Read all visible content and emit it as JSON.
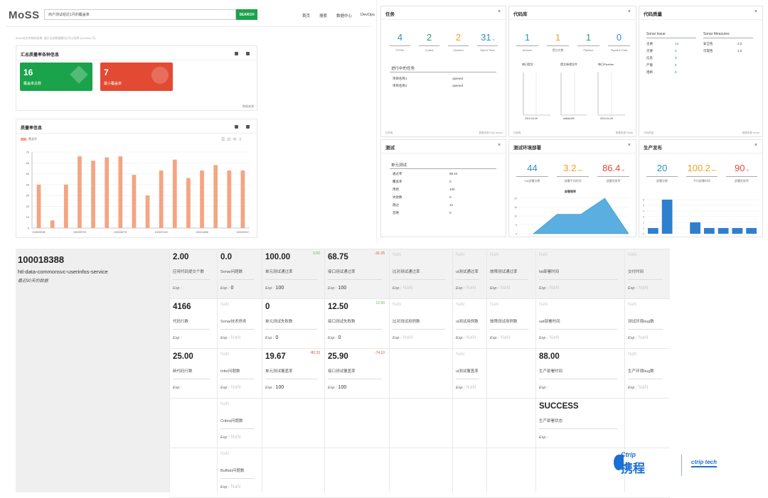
{
  "moss": {
    "logo": "MoSS",
    "search_value": "商户测试组近1月的覆盖率",
    "search_button": "SEARCH",
    "nav": [
      "首页",
      "搜索",
      "数据中心",
      "DevOps"
    ],
    "hint": "Moss对应系统的结果, 展示全部数据概况(可以选择 Question 行)",
    "summary_title": "汇总质量率各种信息",
    "tile1_value": "16",
    "tile1_label": "覆盖率总数",
    "tile2_value": "7",
    "tile2_label": "最小覆盖率",
    "summary_footer": "数据来源",
    "coverage_title": "质量率信息",
    "legend": "覆盖率"
  },
  "chart_data": {
    "type": "bar",
    "title": "质量率信息",
    "legend": [
      "覆盖率"
    ],
    "color": "#f4a582",
    "ylim": [
      0,
      70
    ],
    "yticks": [
      0,
      10,
      20,
      30,
      40,
      50,
      60,
      70
    ],
    "categories": [
      "100009098",
      "",
      "",
      "100009700",
      "",
      "",
      "100008075",
      "",
      "",
      "100007425",
      "",
      "",
      "100014856",
      "",
      "",
      "100020047"
    ],
    "x_tick_labels": [
      "100009098",
      "100009700",
      "100008075",
      "100007425",
      "100014856",
      "100020047"
    ],
    "values": [
      40,
      7,
      40,
      66,
      62,
      65,
      66,
      49,
      30,
      53,
      63,
      46,
      53,
      58,
      53,
      53
    ]
  },
  "tasks": {
    "title": "任务",
    "close": "×",
    "stats": [
      {
        "value": "4",
        "label": "TOTAL",
        "color": "#2b8fd1"
      },
      {
        "value": "2",
        "label": "Coded",
        "color": "#1aa36b"
      },
      {
        "value": "2",
        "label": "Opened",
        "color": "#f0a020"
      },
      {
        "value": "31",
        "unit": "h",
        "label": "Spent Time",
        "color": "#2b8fd1"
      }
    ],
    "in_progress": "进行中的任务",
    "rows": [
      [
        "项目名称1",
        "opened"
      ],
      [
        "项目名称2",
        "opened"
      ]
    ],
    "footer_left": "任务数",
    "footer_right": "数据来源 Ctrip Issues"
  },
  "codebase": {
    "title": "代码库",
    "close": "×",
    "stats": [
      {
        "value": "1",
        "label": "Authors",
        "color": "#2b8fd1"
      },
      {
        "value": "1",
        "label": "提交次数",
        "color": "#f0a020"
      },
      {
        "value": "1",
        "label": "Pipeline",
        "color": "#1aa36b"
      },
      {
        "value": "0",
        "label": "Pipeline Fails",
        "color": "#2b8fd1"
      }
    ],
    "mini_titles": [
      "每日提交",
      "提交新增文件",
      "每日Pipeline"
    ],
    "mini_dates": [
      "2019-04-26",
      "ad8ab499",
      "2019-04-26"
    ],
    "footer_left": "代码库",
    "footer_right": "数据来源 Gitlab"
  },
  "quality": {
    "title": "代码质量",
    "close": "×",
    "col1": "Sonar Issue",
    "col2": "Sonar Measures",
    "issues": [
      [
        "主要",
        "14"
      ],
      [
        "次要",
        "3"
      ],
      [
        "信息",
        "0"
      ],
      [
        "严重",
        "0"
      ],
      [
        "阻断",
        "0"
      ]
    ],
    "measures": [
      [
        "安全性",
        "2.0"
      ],
      [
        "可靠性",
        "1.0"
      ]
    ],
    "footer_left": "代码质量",
    "footer_right": "数据来源 Sonar"
  },
  "testing": {
    "title": "测试",
    "close": "×",
    "section": "单元测试",
    "rows": [
      [
        "通过率",
        "98.42"
      ],
      [
        "覆盖率",
        "0"
      ],
      [
        "用例",
        "100"
      ],
      [
        "失败数",
        "0"
      ],
      [
        "跳过",
        "12"
      ],
      [
        "忽略",
        "0"
      ]
    ]
  },
  "deploy_test": {
    "title": "测试环境部署",
    "close": "×",
    "stats": [
      {
        "value": "44",
        "unit": "",
        "label": "Fat部署次数",
        "color": "#2b8fd1"
      },
      {
        "value": "3.2",
        "unit": "min",
        "label": "部署平均时间",
        "color": "#f0a020"
      },
      {
        "value": "86.4",
        "unit": "%",
        "label": "部署失败率",
        "color": "#e24a33"
      }
    ],
    "chart_title": "部署频率",
    "area_values": [
      0,
      11,
      11,
      20,
      0
    ]
  },
  "deploy_prod": {
    "title": "生产发布",
    "close": "×",
    "stats": [
      {
        "value": "20",
        "unit": "",
        "label": "部署次数",
        "color": "#2b8fd1"
      },
      {
        "value": "100.2",
        "unit": "min",
        "label": "平均部署时间",
        "color": "#f0a020"
      },
      {
        "value": "90",
        "unit": "%",
        "label": "部署失败率",
        "color": "#e24a33"
      }
    ],
    "bar_values": [
      1,
      6,
      0,
      2,
      1,
      1,
      1,
      1
    ]
  },
  "app": {
    "id": "100018388",
    "name": "htl-data-commonsvc-userinfos-service",
    "period": "最近90天的数据"
  },
  "grid": {
    "exp_prefix": "Exp :",
    "cells": [
      {
        "col": 0,
        "row": 0,
        "v": "2.00",
        "l": "应用代码提交个数",
        "e": ""
      },
      {
        "col": 1,
        "row": 0,
        "v": "0.0",
        "l": "Sonar问题数",
        "e": "0"
      },
      {
        "col": 2,
        "row": 0,
        "v": "100.00",
        "l": "单元测试通过率",
        "e": "100",
        "d": "0.00",
        "dc": "#5cb85c"
      },
      {
        "col": 3,
        "row": 0,
        "v": "68.75",
        "l": "接口测试通过率",
        "e": "100",
        "d": "-31.25",
        "dc": "#e24a33"
      },
      {
        "col": 4,
        "row": 0,
        "v": "NaN",
        "l": "比对测试通过率",
        "e": "NaN"
      },
      {
        "col": 5,
        "row": 0,
        "v": "NaN",
        "l": "ui测试通过率",
        "e": "NaN"
      },
      {
        "col": 6,
        "row": 0,
        "v": "NaN",
        "l": "故障测试通过率",
        "e": "NaN"
      },
      {
        "col": 7,
        "row": 0,
        "v": "NaN",
        "l": "fat部署时间",
        "e": "NaN"
      },
      {
        "col": 8,
        "row": 0,
        "v": "NaN",
        "l": "交付时间",
        "e": "NaN"
      },
      {
        "col": 0,
        "row": 1,
        "v": "4166",
        "l": "代码行数",
        "e": ""
      },
      {
        "col": 1,
        "row": 1,
        "v": "NaN",
        "l": "Sonar技术债务",
        "e": "NaN"
      },
      {
        "col": 2,
        "row": 1,
        "v": "0",
        "l": "单元测试失败数",
        "e": "0"
      },
      {
        "col": 3,
        "row": 1,
        "v": "12.50",
        "l": "接口测试失败数",
        "e": "0",
        "d": "12.50",
        "dc": "#5cb85c"
      },
      {
        "col": 4,
        "row": 1,
        "v": "NaN",
        "l": "比对测试用例数",
        "e": "NaN"
      },
      {
        "col": 5,
        "row": 1,
        "v": "NaN",
        "l": "ui测试用例数",
        "e": "NaN"
      },
      {
        "col": 6,
        "row": 1,
        "v": "NaN",
        "l": "故障测试用例数",
        "e": "NaN"
      },
      {
        "col": 7,
        "row": 1,
        "v": "NaN",
        "l": "uat部署时间",
        "e": "NaN"
      },
      {
        "col": 8,
        "row": 1,
        "v": "NaN",
        "l": "测试环境bug数",
        "e": "NaN"
      },
      {
        "col": 0,
        "row": 2,
        "v": "25.00",
        "l": "新代码行数",
        "e": ""
      },
      {
        "col": 1,
        "row": 2,
        "v": "NaN",
        "l": "Infer问题数",
        "e": "NaN"
      },
      {
        "col": 2,
        "row": 2,
        "v": "19.67",
        "l": "单元测试覆盖率",
        "e": "100",
        "d": "-80.33",
        "dc": "#e24a33"
      },
      {
        "col": 3,
        "row": 2,
        "v": "25.90",
        "l": "接口测试覆盖率",
        "e": "100",
        "d": "-74.10",
        "dc": "#e24a33"
      },
      {
        "col": 5,
        "row": 2,
        "v": "NaN",
        "l": "ui测试覆盖率",
        "e": "NaN"
      },
      {
        "col": 7,
        "row": 2,
        "v": "88.00",
        "l": "生产部署时间",
        "e": ""
      },
      {
        "col": 8,
        "row": 2,
        "v": "NaN",
        "l": "生产环境bug数",
        "e": "NaN"
      },
      {
        "col": 1,
        "row": 3,
        "v": "NaN",
        "l": "Cobra问题数",
        "e": "NaN"
      },
      {
        "col": 7,
        "row": 3,
        "v": "SUCCESS",
        "l": "生产部署状态",
        "e": ""
      },
      {
        "col": 1,
        "row": 4,
        "v": "NaN",
        "l": "Buffalo问题数",
        "e": "NaN"
      }
    ]
  },
  "brand": {
    "ctrip_text": "携程",
    "ctrip_en": "Ctrip",
    "tech": "ctrip tech"
  }
}
